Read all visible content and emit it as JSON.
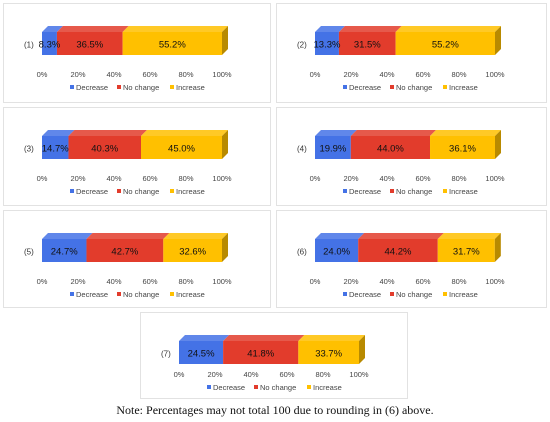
{
  "colors": {
    "decrease": "#4472e6",
    "no_change": "#e23c2c",
    "increase": "#ffc000",
    "text": "#333333"
  },
  "legend_labels": [
    "Decrease",
    "No change",
    "Increase"
  ],
  "axis_ticks": [
    "0%",
    "20%",
    "40%",
    "60%",
    "80%",
    "100%"
  ],
  "chart_data": [
    {
      "type": "bar",
      "orientation": "horizontal",
      "stacked": true,
      "category": "(1)",
      "xlim": [
        0,
        100
      ],
      "series": [
        {
          "name": "Decrease",
          "value": 8.3,
          "label": "8.3%"
        },
        {
          "name": "No change",
          "value": 36.5,
          "label": "36.5%"
        },
        {
          "name": "Increase",
          "value": 55.2,
          "label": "55.2%"
        }
      ]
    },
    {
      "type": "bar",
      "orientation": "horizontal",
      "stacked": true,
      "category": "(2)",
      "xlim": [
        0,
        100
      ],
      "series": [
        {
          "name": "Decrease",
          "value": 13.3,
          "label": "13.3%"
        },
        {
          "name": "No change",
          "value": 31.5,
          "label": "31.5%"
        },
        {
          "name": "Increase",
          "value": 55.2,
          "label": "55.2%"
        }
      ]
    },
    {
      "type": "bar",
      "orientation": "horizontal",
      "stacked": true,
      "category": "(3)",
      "xlim": [
        0,
        100
      ],
      "series": [
        {
          "name": "Decrease",
          "value": 14.7,
          "label": "14.7%"
        },
        {
          "name": "No change",
          "value": 40.3,
          "label": "40.3%"
        },
        {
          "name": "Increase",
          "value": 45.0,
          "label": "45.0%"
        }
      ]
    },
    {
      "type": "bar",
      "orientation": "horizontal",
      "stacked": true,
      "category": "(4)",
      "xlim": [
        0,
        100
      ],
      "series": [
        {
          "name": "Decrease",
          "value": 19.9,
          "label": "19.9%"
        },
        {
          "name": "No change",
          "value": 44.0,
          "label": "44.0%"
        },
        {
          "name": "Increase",
          "value": 36.1,
          "label": "36.1%"
        }
      ]
    },
    {
      "type": "bar",
      "orientation": "horizontal",
      "stacked": true,
      "category": "(5)",
      "xlim": [
        0,
        100
      ],
      "series": [
        {
          "name": "Decrease",
          "value": 24.7,
          "label": "24.7%"
        },
        {
          "name": "No change",
          "value": 42.7,
          "label": "42.7%"
        },
        {
          "name": "Increase",
          "value": 32.6,
          "label": "32.6%"
        }
      ]
    },
    {
      "type": "bar",
      "orientation": "horizontal",
      "stacked": true,
      "category": "(6)",
      "xlim": [
        0,
        100
      ],
      "series": [
        {
          "name": "Decrease",
          "value": 24.0,
          "label": "24.0%"
        },
        {
          "name": "No change",
          "value": 44.2,
          "label": "44.2%"
        },
        {
          "name": "Increase",
          "value": 31.7,
          "label": "31.7%"
        }
      ]
    },
    {
      "type": "bar",
      "orientation": "horizontal",
      "stacked": true,
      "category": "(7)",
      "xlim": [
        0,
        100
      ],
      "series": [
        {
          "name": "Decrease",
          "value": 24.5,
          "label": "24.5%"
        },
        {
          "name": "No change",
          "value": 41.8,
          "label": "41.8%"
        },
        {
          "name": "Increase",
          "value": 33.7,
          "label": "33.7%"
        }
      ]
    }
  ],
  "note": "Note: Percentages may not total 100 due to rounding in (6) above."
}
